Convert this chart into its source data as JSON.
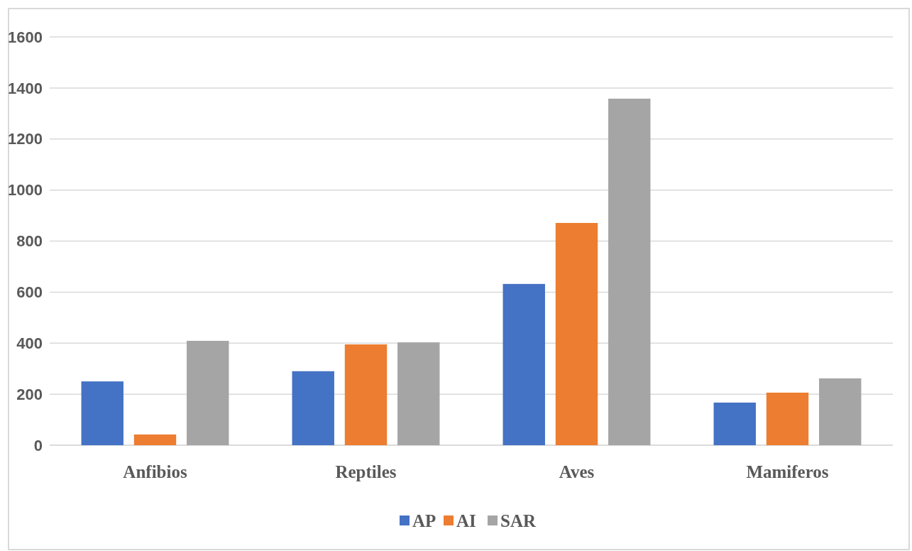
{
  "chart_data": {
    "type": "bar",
    "categories": [
      "Anfibios",
      "Reptiles",
      "Aves",
      "Mamiferos"
    ],
    "series": [
      {
        "name": "AP",
        "color": "#4472c4",
        "values": [
          250,
          290,
          632,
          167
        ]
      },
      {
        "name": "AI",
        "color": "#ed7d31",
        "values": [
          42,
          395,
          871,
          206
        ]
      },
      {
        "name": "SAR",
        "color": "#a5a5a5",
        "values": [
          409,
          403,
          1358,
          262
        ]
      }
    ],
    "ylim": [
      0,
      1600
    ],
    "yticks": [
      0,
      200,
      400,
      600,
      800,
      1000,
      1200,
      1400,
      1600
    ],
    "grid": "y",
    "legend": "bottom"
  }
}
